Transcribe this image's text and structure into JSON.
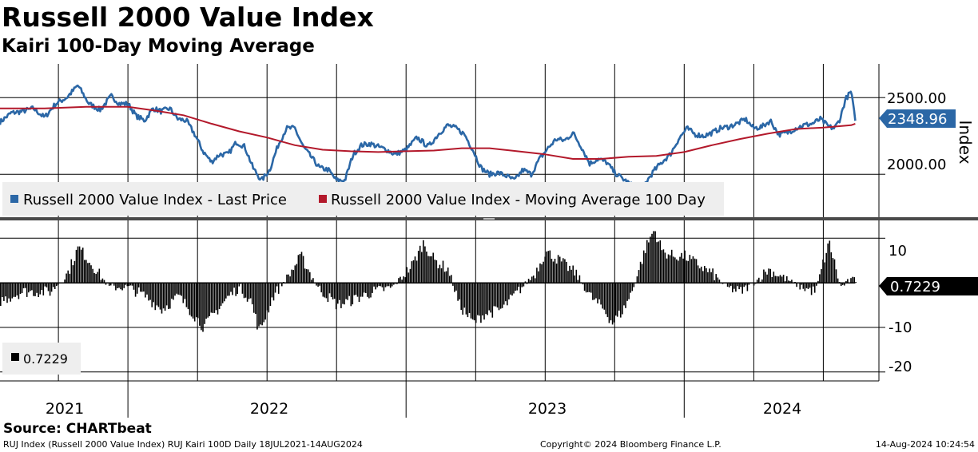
{
  "title": "Russell 2000 Value Index",
  "subtitle": "Kairi 100-Day Moving Average",
  "source": "Source: CHARTbeat",
  "footer": {
    "left": "RUJ Index (Russell 2000 Value Index) RUJ Kairi 100D  Daily 18JUL2021-14AUG2024",
    "center": "Copyright© 2024 Bloomberg Finance L.P.",
    "right": "14-Aug-2024 10:24:54"
  },
  "colors": {
    "price": "#2b67a6",
    "ma": "#b3192b",
    "kairi": "#000000"
  },
  "chart_data": [
    {
      "type": "line",
      "panel": "top",
      "ylabel": "Index",
      "ylim": [
        1720,
        2720
      ],
      "yticks": [
        2000,
        2500
      ],
      "ytick_labels": [
        "2000.00",
        "2500.00"
      ],
      "x_years": [
        "2021",
        "2022",
        "2023",
        "2024"
      ],
      "last_value_label": "2348.96",
      "legend": {
        "price": "Russell 2000 Value Index - Last Price",
        "ma": "Russell 2000 Value Index - Moving Average 100 Day"
      },
      "series": [
        {
          "name": "Russell 2000 Value Index - Last Price",
          "x": [
            2021.54,
            2021.58,
            2021.62,
            2021.66,
            2021.7,
            2021.74,
            2021.78,
            2021.82,
            2021.86,
            2021.9,
            2021.94,
            2021.97,
            2022.0,
            2022.03,
            2022.06,
            2022.09,
            2022.12,
            2022.15,
            2022.18,
            2022.21,
            2022.24,
            2022.27,
            2022.3,
            2022.33,
            2022.36,
            2022.39,
            2022.42,
            2022.45,
            2022.48,
            2022.51,
            2022.54,
            2022.57,
            2022.6,
            2022.63,
            2022.66,
            2022.69,
            2022.72,
            2022.75,
            2022.78,
            2022.81,
            2022.84,
            2022.87,
            2022.9,
            2022.93,
            2022.96,
            2023.0,
            2023.04,
            2023.08,
            2023.12,
            2023.15,
            2023.18,
            2023.21,
            2023.24,
            2023.27,
            2023.3,
            2023.33,
            2023.36,
            2023.39,
            2023.42,
            2023.45,
            2023.48,
            2023.51,
            2023.54,
            2023.57,
            2023.6,
            2023.63,
            2023.66,
            2023.69,
            2023.72,
            2023.75,
            2023.78,
            2023.81,
            2023.83,
            2023.86,
            2023.89,
            2023.92,
            2023.95,
            2023.98,
            2024.01,
            2024.04,
            2024.07,
            2024.1,
            2024.13,
            2024.16,
            2024.19,
            2024.22,
            2024.25,
            2024.28,
            2024.31,
            2024.34,
            2024.37,
            2024.4,
            2024.43,
            2024.46,
            2024.49,
            2024.52,
            2024.54,
            2024.56,
            2024.58,
            2024.6,
            2024.615
          ],
          "values": [
            2340,
            2400,
            2410,
            2430,
            2370,
            2460,
            2500,
            2580,
            2460,
            2420,
            2510,
            2460,
            2460,
            2380,
            2350,
            2430,
            2410,
            2430,
            2360,
            2350,
            2260,
            2150,
            2080,
            2130,
            2130,
            2210,
            2180,
            2040,
            1960,
            2030,
            2190,
            2300,
            2300,
            2180,
            2110,
            2040,
            2030,
            1960,
            1960,
            2130,
            2190,
            2200,
            2180,
            2160,
            2130,
            2160,
            2240,
            2180,
            2270,
            2320,
            2300,
            2260,
            2160,
            2040,
            2000,
            2010,
            1990,
            1960,
            2030,
            2000,
            2100,
            2170,
            2230,
            2220,
            2270,
            2180,
            2070,
            2100,
            2080,
            2010,
            1970,
            1930,
            1890,
            1940,
            2020,
            2080,
            2130,
            2230,
            2300,
            2260,
            2250,
            2270,
            2300,
            2310,
            2330,
            2360,
            2300,
            2310,
            2350,
            2260,
            2270,
            2300,
            2320,
            2330,
            2360,
            2310,
            2300,
            2360,
            2490,
            2540,
            2348.96
          ]
        },
        {
          "name": "Russell 2000 Value Index - Moving Average 100 Day",
          "x": [
            2021.54,
            2021.7,
            2021.85,
            2022.0,
            2022.1,
            2022.2,
            2022.3,
            2022.4,
            2022.5,
            2022.6,
            2022.7,
            2022.8,
            2022.9,
            2023.0,
            2023.1,
            2023.2,
            2023.3,
            2023.4,
            2023.5,
            2023.6,
            2023.7,
            2023.8,
            2023.9,
            2024.0,
            2024.1,
            2024.2,
            2024.3,
            2024.4,
            2024.5,
            2024.6,
            2024.615
          ],
          "values": [
            2430,
            2430,
            2440,
            2440,
            2415,
            2385,
            2330,
            2280,
            2240,
            2190,
            2160,
            2150,
            2145,
            2150,
            2155,
            2170,
            2170,
            2150,
            2130,
            2100,
            2100,
            2115,
            2120,
            2145,
            2190,
            2230,
            2265,
            2295,
            2305,
            2320,
            2330
          ]
        }
      ]
    },
    {
      "type": "bar",
      "panel": "bottom",
      "name": "RUJ Kairi 100D",
      "ylim": [
        -22,
        14
      ],
      "yticks": [
        10,
        -10,
        -20
      ],
      "ytick_labels": [
        "10",
        "-10",
        "-20"
      ],
      "last_value_label": "0.7229",
      "legend_label": "0.7229",
      "knots_x": [
        2021.54,
        2021.62,
        2021.72,
        2021.78,
        2021.82,
        2021.87,
        2021.93,
        2022.0,
        2022.06,
        2022.12,
        2022.18,
        2022.22,
        2022.27,
        2022.32,
        2022.36,
        2022.4,
        2022.44,
        2022.47,
        2022.52,
        2022.58,
        2022.62,
        2022.68,
        2022.75,
        2022.8,
        2022.88,
        2022.95,
        2023.02,
        2023.06,
        2023.1,
        2023.15,
        2023.19,
        2023.24,
        2023.28,
        2023.34,
        2023.4,
        2023.46,
        2023.5,
        2023.55,
        2023.61,
        2023.66,
        2023.71,
        2023.74,
        2023.78,
        2023.81,
        2023.86,
        2023.89,
        2023.92,
        2023.96,
        2024.0,
        2024.05,
        2024.1,
        2024.15,
        2024.2,
        2024.25,
        2024.3,
        2024.36,
        2024.42,
        2024.47,
        2024.5,
        2024.52,
        2024.56,
        2024.59,
        2024.615
      ],
      "knots_y": [
        -4,
        -2,
        -2,
        2,
        8,
        4,
        -1,
        -1,
        -3,
        -6,
        -3,
        -6,
        -10,
        -6,
        -3,
        -1,
        -4,
        -11,
        -3,
        2,
        6,
        -1,
        -5,
        -4,
        -2,
        -1,
        4,
        9,
        5,
        3,
        -5,
        -9,
        -7,
        -6,
        -2,
        2,
        7,
        5,
        2,
        -3,
        -6,
        -9,
        -6,
        -2,
        8,
        12,
        7,
        6,
        6,
        4,
        2,
        -1,
        -2,
        0,
        3,
        1,
        -1,
        -2,
        5,
        9,
        -1,
        0.5,
        0.7229
      ]
    }
  ]
}
